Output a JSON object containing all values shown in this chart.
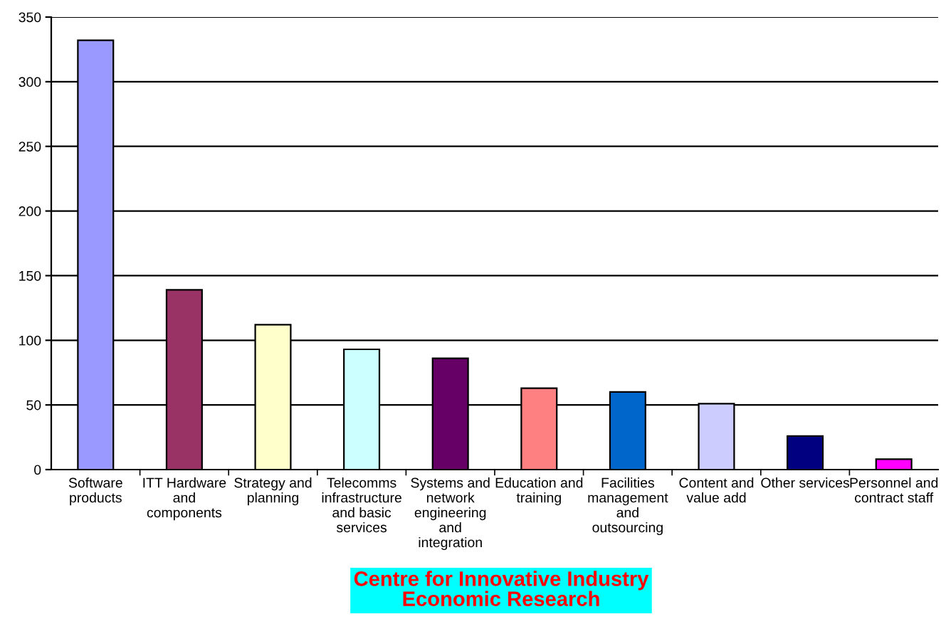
{
  "chart_data": {
    "type": "bar",
    "categories": [
      "Software\nproducts",
      "ITT Hardware\nand\ncomponents",
      "Strategy and\nplanning",
      "Telecomms\ninfrastructure\nand basic\nservices",
      "Systems and\nnetwork\nengineering\nand\nintegration",
      "Education and\ntraining",
      "Facilities\nmanagement\nand\noutsourcing",
      "Content and\nvalue add",
      "Other services",
      "Personnel and\ncontract staff"
    ],
    "values": [
      332,
      139,
      112,
      93,
      86,
      63,
      60,
      51,
      26,
      8
    ],
    "colors": [
      "#9999ff",
      "#993366",
      "#ffffcc",
      "#ccffff",
      "#660066",
      "#ff8080",
      "#0066cc",
      "#ccccff",
      "#000080",
      "#ff00ff"
    ],
    "ylim": [
      0,
      350
    ],
    "yticks": [
      0,
      50,
      100,
      150,
      200,
      250,
      300,
      350
    ],
    "grid": "y",
    "annotations": [
      "Centre for Innovative Industry\nEconomic Research"
    ]
  }
}
